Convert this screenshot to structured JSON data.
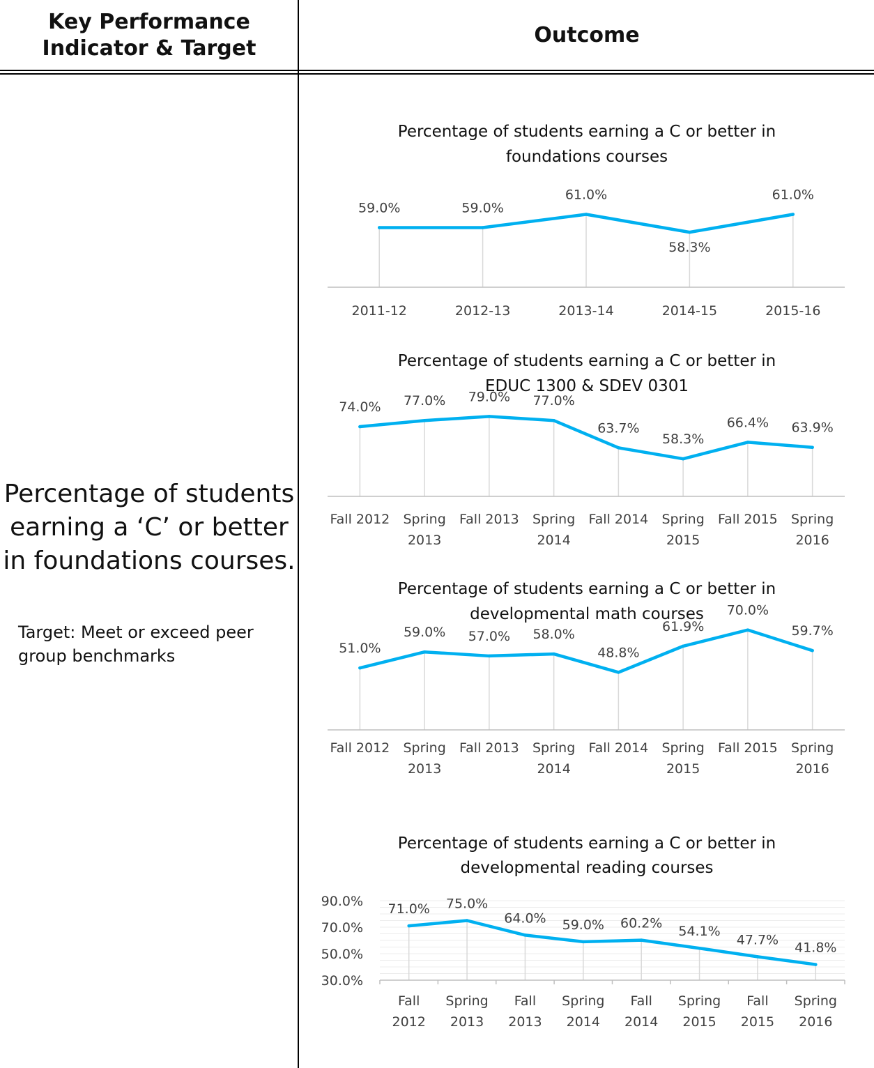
{
  "header": {
    "kpi_title_line1": "Key Performance",
    "kpi_title_line2": "Indicator & Target",
    "outcome_title": "Outcome"
  },
  "kpi": {
    "indicator_line1": "Percentage of students",
    "indicator_line2": "earning a ‘C’ or better",
    "indicator_line3": "in foundations courses.",
    "target_line1": "Target: Meet or exceed peer",
    "target_line2": "group benchmarks"
  },
  "colors": {
    "line": "#00b0f0",
    "grid": "#d9d9d9",
    "axis": "#bfbfbf",
    "text": "#404040"
  },
  "chart_data": [
    {
      "type": "line",
      "title": [
        "Percentage of students earning a C or better in",
        "foundations courses"
      ],
      "categories": [
        [
          "2011-12"
        ],
        [
          "2012-13"
        ],
        [
          "2013-14"
        ],
        [
          "2014-15"
        ],
        [
          "2015-16"
        ]
      ],
      "values": [
        59.0,
        59.0,
        61.0,
        58.3,
        61.0
      ],
      "data_labels": [
        "59.0%",
        "59.0%",
        "61.0%",
        "58.3%",
        "61.0%"
      ]
    },
    {
      "type": "line",
      "title": [
        "Percentage of students earning a C or better in",
        "EDUC 1300 & SDEV 0301"
      ],
      "categories": [
        [
          "Fall 2012"
        ],
        [
          "Spring",
          "2013"
        ],
        [
          "Fall 2013"
        ],
        [
          "Spring",
          "2014"
        ],
        [
          "Fall 2014"
        ],
        [
          "Spring",
          "2015"
        ],
        [
          "Fall 2015"
        ],
        [
          "Spring",
          "2016"
        ]
      ],
      "values": [
        74.0,
        77.0,
        79.0,
        77.0,
        63.7,
        58.3,
        66.4,
        63.9
      ],
      "data_labels": [
        "74.0%",
        "77.0%",
        "79.0%",
        "77.0%",
        "63.7%",
        "58.3%",
        "66.4%",
        "63.9%"
      ]
    },
    {
      "type": "line",
      "title": [
        "Percentage of students earning a C or better in",
        "developmental math courses"
      ],
      "categories": [
        [
          "Fall 2012"
        ],
        [
          "Spring",
          "2013"
        ],
        [
          "Fall 2013"
        ],
        [
          "Spring",
          "2014"
        ],
        [
          "Fall 2014"
        ],
        [
          "Spring",
          "2015"
        ],
        [
          "Fall 2015"
        ],
        [
          "Spring",
          "2016"
        ]
      ],
      "values": [
        51.0,
        59.0,
        57.0,
        58.0,
        48.8,
        61.9,
        70.0,
        59.7
      ],
      "data_labels": [
        "51.0%",
        "59.0%",
        "57.0%",
        "58.0%",
        "48.8%",
        "61.9%",
        "70.0%",
        "59.7%"
      ]
    },
    {
      "type": "line",
      "title": [
        "Percentage of students earning a C or better in",
        "developmental reading courses"
      ],
      "categories": [
        [
          "Fall",
          "2012"
        ],
        [
          "Spring",
          "2013"
        ],
        [
          "Fall",
          "2013"
        ],
        [
          "Spring",
          "2014"
        ],
        [
          "Fall",
          "2014"
        ],
        [
          "Spring",
          "2015"
        ],
        [
          "Fall",
          "2015"
        ],
        [
          "Spring",
          "2016"
        ]
      ],
      "values": [
        71.0,
        75.0,
        64.0,
        59.0,
        60.2,
        54.1,
        47.7,
        41.8
      ],
      "data_labels": [
        "71.0%",
        "75.0%",
        "64.0%",
        "59.0%",
        "60.2%",
        "54.1%",
        "47.7%",
        "41.8%"
      ],
      "yticks": [
        "90.0%",
        "70.0%",
        "50.0%",
        "30.0%"
      ],
      "ylim": [
        30,
        90
      ],
      "grid": true
    }
  ]
}
